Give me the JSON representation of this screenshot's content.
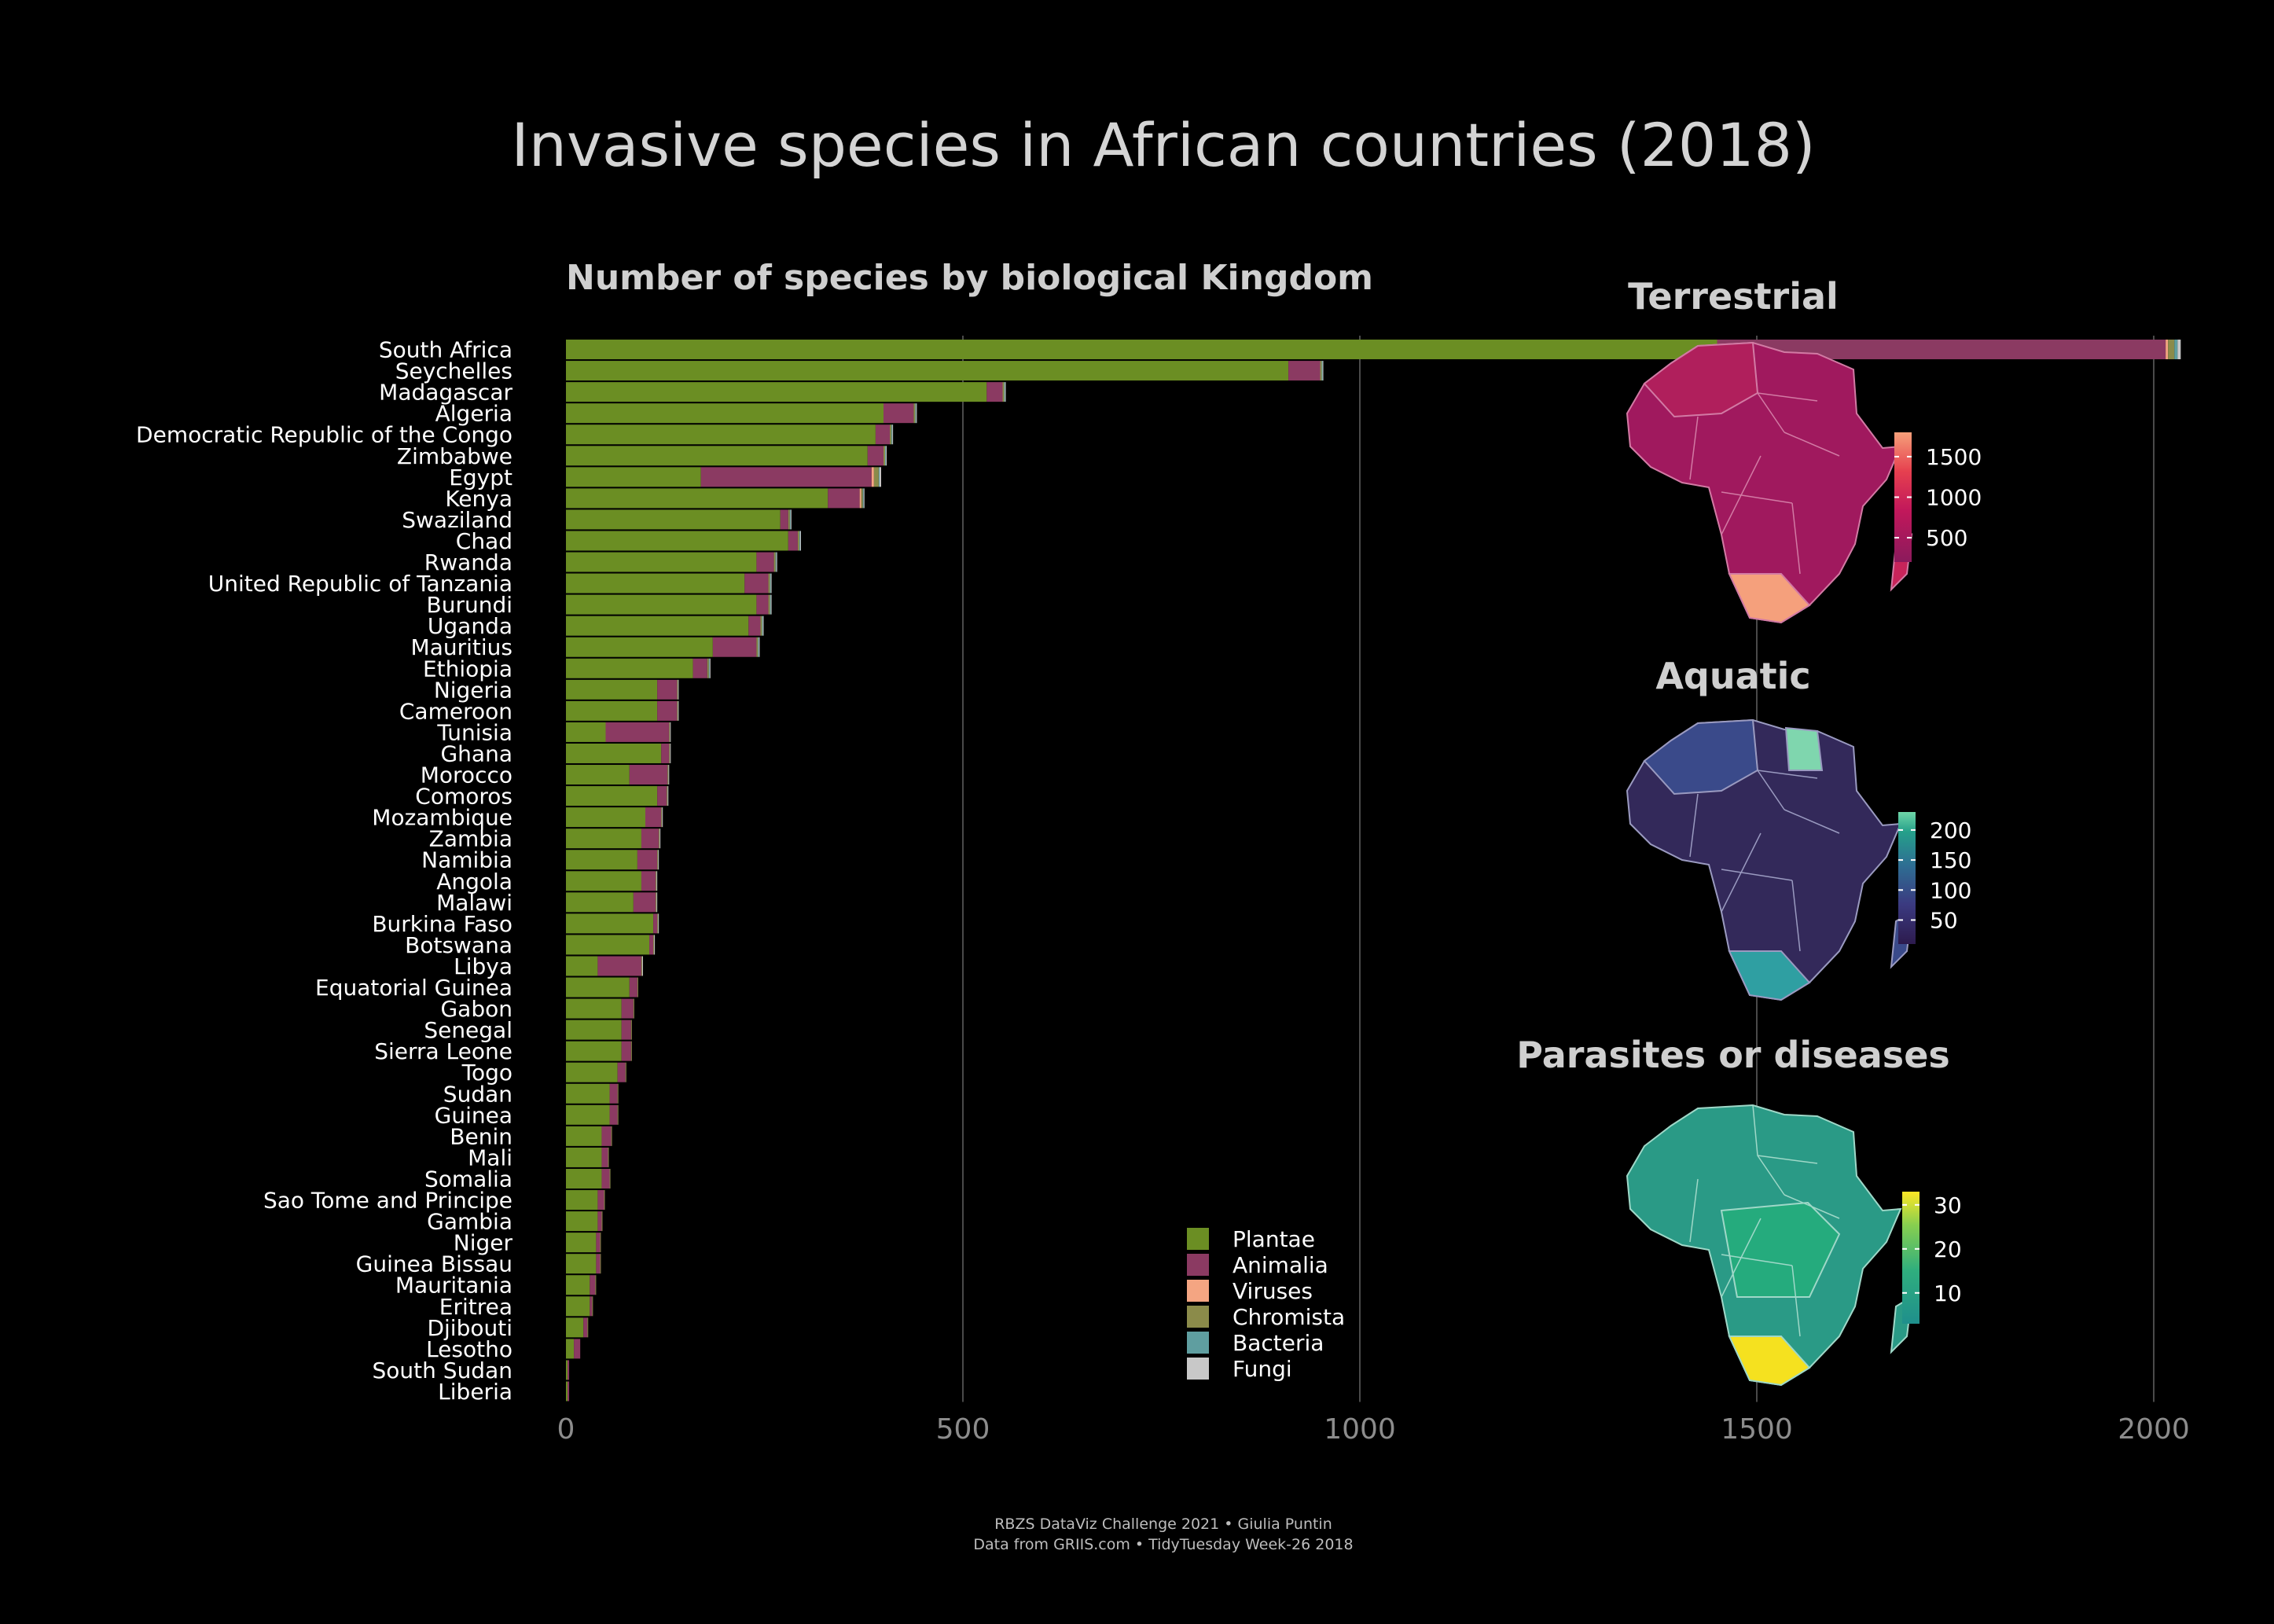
{
  "title": "Invasive species in African countries (2018)",
  "caption": {
    "line1": "RBZS DataViz Challenge 2021 • Giulia Puntin",
    "line2": "Data from GRIIS.com • TidyTuesday Week-26 2018"
  },
  "chart_data": [
    {
      "type": "bar",
      "orientation": "horizontal",
      "stacked": true,
      "title": "Number of species by biological Kingdom",
      "xlim": [
        0,
        2100
      ],
      "xticks": [
        0,
        500,
        1000,
        1500,
        2000
      ],
      "grid": true,
      "legend_position": "bottom-right",
      "categories": [
        "South Africa",
        "Seychelles",
        "Madagascar",
        "Algeria",
        "Democratic Republic of the Congo",
        "Zimbabwe",
        "Egypt",
        "Kenya",
        "Swaziland",
        "Chad",
        "Rwanda",
        "United Republic of Tanzania",
        "Burundi",
        "Uganda",
        "Mauritius",
        "Ethiopia",
        "Nigeria",
        "Cameroon",
        "Tunisia",
        "Ghana",
        "Morocco",
        "Comoros",
        "Mozambique",
        "Zambia",
        "Namibia",
        "Angola",
        "Malawi",
        "Burkina Faso",
        "Botswana",
        "Libya",
        "Equatorial Guinea",
        "Gabon",
        "Senegal",
        "Sierra Leone",
        "Togo",
        "Sudan",
        "Guinea",
        "Benin",
        "Mali",
        "Somalia",
        "Sao Tome and Principe",
        "Gambia",
        "Niger",
        "Guinea Bissau",
        "Mauritania",
        "Eritrea",
        "Djibouti",
        "Lesotho",
        "South Sudan",
        "Liberia"
      ],
      "series": [
        {
          "name": "Plantae",
          "color": "#6b8e23",
          "values": [
            1450,
            910,
            530,
            400,
            390,
            380,
            170,
            330,
            270,
            280,
            240,
            225,
            240,
            230,
            185,
            160,
            115,
            115,
            50,
            120,
            80,
            115,
            100,
            95,
            90,
            95,
            85,
            110,
            105,
            40,
            80,
            70,
            70,
            70,
            65,
            55,
            55,
            45,
            45,
            45,
            40,
            40,
            38,
            38,
            30,
            30,
            22,
            10,
            2,
            2
          ]
        },
        {
          "name": "Animalia",
          "color": "#8b3a62",
          "values": [
            565,
            40,
            20,
            38,
            18,
            20,
            215,
            40,
            10,
            12,
            22,
            30,
            15,
            15,
            55,
            18,
            25,
            25,
            80,
            10,
            48,
            12,
            20,
            22,
            25,
            18,
            28,
            5,
            5,
            55,
            10,
            15,
            12,
            12,
            10,
            10,
            10,
            12,
            8,
            10,
            8,
            5,
            5,
            5,
            7,
            3,
            5,
            8,
            2,
            2
          ]
        },
        {
          "name": "Viruses",
          "color": "#f4a582",
          "values": [
            3,
            0,
            0,
            0,
            0,
            0,
            3,
            2,
            0,
            0,
            0,
            0,
            0,
            0,
            0,
            0,
            0,
            0,
            0,
            0,
            0,
            0,
            0,
            0,
            0,
            0,
            0,
            0,
            0,
            0,
            0,
            0,
            0,
            0,
            0,
            0,
            0,
            0,
            0,
            0,
            0,
            0,
            0,
            0,
            0,
            0,
            0,
            0,
            0,
            0
          ]
        },
        {
          "name": "Chromista",
          "color": "#8b8b4a",
          "values": [
            8,
            2,
            2,
            2,
            2,
            2,
            6,
            2,
            2,
            2,
            2,
            2,
            2,
            2,
            2,
            2,
            1,
            1,
            1,
            1,
            1,
            1,
            1,
            1,
            1,
            1,
            1,
            1,
            1,
            1,
            1,
            1,
            1,
            1,
            1,
            1,
            1,
            1,
            1,
            1,
            1,
            1,
            1,
            1,
            1,
            1,
            1,
            0,
            0,
            0
          ]
        },
        {
          "name": "Bacteria",
          "color": "#5f9ea0",
          "values": [
            4,
            1,
            1,
            1,
            1,
            1,
            1,
            1,
            1,
            1,
            1,
            1,
            1,
            1,
            1,
            1,
            0,
            0,
            0,
            0,
            0,
            0,
            0,
            0,
            0,
            0,
            0,
            0,
            0,
            0,
            0,
            0,
            0,
            0,
            0,
            0,
            0,
            0,
            0,
            0,
            0,
            0,
            0,
            0,
            0,
            0,
            0,
            0,
            0,
            0
          ]
        },
        {
          "name": "Fungi",
          "color": "#c8c8c8",
          "values": [
            4,
            1,
            1,
            1,
            1,
            1,
            2,
            1,
            1,
            1,
            1,
            1,
            1,
            1,
            1,
            1,
            1,
            1,
            1,
            1,
            1,
            1,
            1,
            1,
            1,
            1,
            1,
            1,
            1,
            1,
            0,
            0,
            0,
            0,
            0,
            0,
            0,
            0,
            0,
            0,
            0,
            0,
            0,
            0,
            0,
            0,
            0,
            0,
            0,
            0
          ]
        }
      ]
    },
    {
      "type": "map",
      "title": "Terrestrial",
      "colorbar": {
        "ticks": [
          1500,
          1000,
          500
        ],
        "range": [
          200,
          1800
        ],
        "colors": [
          "#8b1a5c",
          "#c2185b",
          "#e6404f",
          "#f6a07a"
        ]
      }
    },
    {
      "type": "map",
      "title": "Aquatic",
      "colorbar": {
        "ticks": [
          200,
          150,
          100,
          50
        ],
        "range": [
          10,
          230
        ],
        "colors": [
          "#2d1b4e",
          "#3b3a80",
          "#2e6f93",
          "#25a08a",
          "#6fd6a8"
        ]
      }
    },
    {
      "type": "map",
      "title": "Parasites or diseases",
      "colorbar": {
        "ticks": [
          30,
          20,
          10
        ],
        "range": [
          3,
          33
        ],
        "colors": [
          "#1f8f8c",
          "#2fae7e",
          "#88cf4f",
          "#fde725"
        ]
      }
    }
  ]
}
